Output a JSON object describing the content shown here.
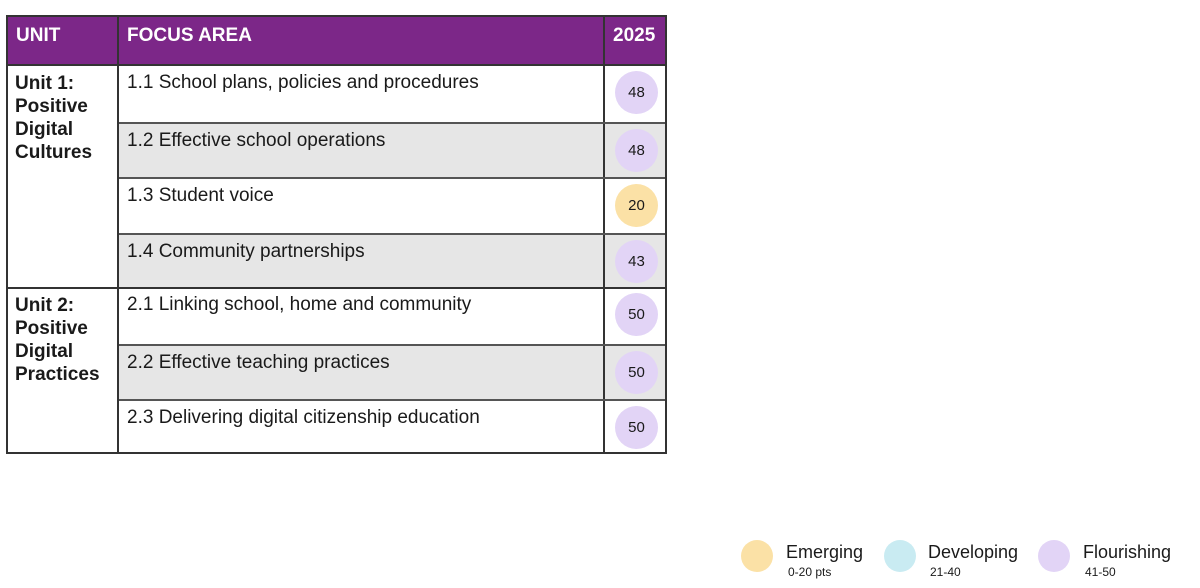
{
  "table": {
    "headers": {
      "unit": "UNIT",
      "focus_area": "FOCUS AREA",
      "year": "2025"
    },
    "units": [
      {
        "label": "Unit 1: Positive Digital Cultures",
        "rows": [
          {
            "focus": "1.1 School plans, policies and procedures",
            "score": "48",
            "level": "flourishing"
          },
          {
            "focus": "1.2 Effective school operations",
            "score": "48",
            "level": "flourishing"
          },
          {
            "focus": "1.3 Student voice",
            "score": "20",
            "level": "emerging"
          },
          {
            "focus": "1.4 Community partnerships",
            "score": "43",
            "level": "flourishing"
          }
        ]
      },
      {
        "label": "Unit 2: Positive Digital Practices",
        "rows": [
          {
            "focus": "2.1 Linking school, home and community",
            "score": "50",
            "level": "flourishing"
          },
          {
            "focus": "2.2 Effective teaching practices",
            "score": "50",
            "level": "flourishing"
          },
          {
            "focus": "2.3 Delivering digital citizenship education",
            "score": "50",
            "level": "flourishing"
          }
        ]
      }
    ]
  },
  "legend": [
    {
      "key": "emerging",
      "label": "Emerging",
      "range": "0-20 pts",
      "color": "#fbe1a6"
    },
    {
      "key": "developing",
      "label": "Developing",
      "range": "21-40",
      "color": "#c9ebf2"
    },
    {
      "key": "flourishing",
      "label": "Flourishing",
      "range": "41-50",
      "color": "#e2d4f6"
    }
  ],
  "colors": {
    "header_bg": "#7c2788",
    "header_text": "#ffffff",
    "row_shade": "#e6e6e6"
  }
}
